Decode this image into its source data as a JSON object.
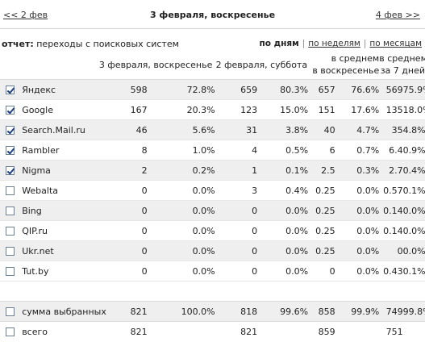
{
  "nav": {
    "prev_label": "<< 2 фев",
    "title": "3 февраля, воскресенье",
    "next_label": "4 фев >>"
  },
  "report": {
    "prefix": "отчет:",
    "name": "переходы с поисковых систем",
    "views": [
      "по дням",
      "по неделям",
      "по месяцам"
    ],
    "active_view": "по дням",
    "separator": "|"
  },
  "columns": {
    "day1": "3 февраля, воскресенье",
    "day2": "2 февраля, суббота",
    "avg_sun_line1": "в среднем",
    "avg_sun_line2": "в воскресенье",
    "avg_7_line1": "в среднем",
    "avg_7_line2": "за 7 дней"
  },
  "rows": [
    {
      "name": "Яндекс",
      "checked": true,
      "v1": "598",
      "p1": "72.8%",
      "v2": "659",
      "p2": "80.3%",
      "v3": "657",
      "p3": "76.6%",
      "v4": "569",
      "p4": "75.9%"
    },
    {
      "name": "Google",
      "checked": true,
      "v1": "167",
      "p1": "20.3%",
      "v2": "123",
      "p2": "15.0%",
      "v3": "151",
      "p3": "17.6%",
      "v4": "135",
      "p4": "18.0%"
    },
    {
      "name": "Search.Mail.ru",
      "checked": true,
      "v1": "46",
      "p1": "5.6%",
      "v2": "31",
      "p2": "3.8%",
      "v3": "40",
      "p3": "4.7%",
      "v4": "35",
      "p4": "4.8%"
    },
    {
      "name": "Rambler",
      "checked": true,
      "v1": "8",
      "p1": "1.0%",
      "v2": "4",
      "p2": "0.5%",
      "v3": "6",
      "p3": "0.7%",
      "v4": "6.4",
      "p4": "0.9%"
    },
    {
      "name": "Nigma",
      "checked": true,
      "v1": "2",
      "p1": "0.2%",
      "v2": "1",
      "p2": "0.1%",
      "v3": "2.5",
      "p3": "0.3%",
      "v4": "2.7",
      "p4": "0.4%"
    },
    {
      "name": "Webalta",
      "checked": false,
      "v1": "0",
      "p1": "0.0%",
      "v2": "3",
      "p2": "0.4%",
      "v3": "0.25",
      "p3": "0.0%",
      "v4": "0.57",
      "p4": "0.1%"
    },
    {
      "name": "Bing",
      "checked": false,
      "v1": "0",
      "p1": "0.0%",
      "v2": "0",
      "p2": "0.0%",
      "v3": "0.25",
      "p3": "0.0%",
      "v4": "0.14",
      "p4": "0.0%"
    },
    {
      "name": "QIP.ru",
      "checked": false,
      "v1": "0",
      "p1": "0.0%",
      "v2": "0",
      "p2": "0.0%",
      "v3": "0.25",
      "p3": "0.0%",
      "v4": "0.14",
      "p4": "0.0%"
    },
    {
      "name": "Ukr.net",
      "checked": false,
      "v1": "0",
      "p1": "0.0%",
      "v2": "0",
      "p2": "0.0%",
      "v3": "0.25",
      "p3": "0.0%",
      "v4": "0",
      "p4": "0.0%"
    },
    {
      "name": "Tut.by",
      "checked": false,
      "v1": "0",
      "p1": "0.0%",
      "v2": "0",
      "p2": "0.0%",
      "v3": "0",
      "p3": "0.0%",
      "v4": "0.43",
      "p4": "0.1%"
    }
  ],
  "totals": {
    "selected": {
      "name": "сумма выбранных",
      "checked": false,
      "v1": "821",
      "p1": "100.0%",
      "v2": "818",
      "p2": "99.6%",
      "v3": "858",
      "p3": "99.9%",
      "v4": "749",
      "p4": "99.8%"
    },
    "all": {
      "name": "всего",
      "checked": false,
      "v1": "821",
      "v2": "821",
      "v3": "859",
      "v4": "751"
    }
  },
  "colors": {
    "row_shade": "#efefef",
    "checkmark": "#1c3f86",
    "checkbox_border": "#6b7f96"
  }
}
